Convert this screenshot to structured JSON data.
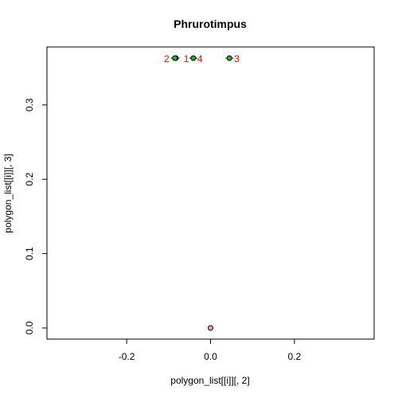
{
  "chart_data": {
    "type": "scatter",
    "title": "Phrurotimpus",
    "xlabel": "polygon_list[[i]][, 2]",
    "ylabel": "polygon_list[[i]][, 3]",
    "xlim": [
      -0.39,
      0.39
    ],
    "ylim": [
      -0.015,
      0.378
    ],
    "xticks": [
      -0.2,
      0.0,
      0.2
    ],
    "xtick_labels": [
      "-0.2",
      "0.0",
      "0.2"
    ],
    "yticks": [
      0.0,
      0.1,
      0.2,
      0.3
    ],
    "ytick_labels": [
      "0.0",
      "0.1",
      "0.2",
      "0.3"
    ],
    "grid": false,
    "origin_point": {
      "x": 0.0,
      "y": 0.0,
      "color": "#f4a6b8"
    },
    "points": [
      {
        "label": "1",
        "x": -0.083,
        "y": 0.363,
        "color": "#22b522"
      },
      {
        "label": "2",
        "x": -0.085,
        "y": 0.363,
        "color": "#22b522"
      },
      {
        "label": "3",
        "x": 0.045,
        "y": 0.363,
        "color": "#22b522"
      },
      {
        "label": "4",
        "x": -0.041,
        "y": 0.363,
        "color": "#22b522"
      }
    ],
    "label_color": "#ff0000"
  }
}
